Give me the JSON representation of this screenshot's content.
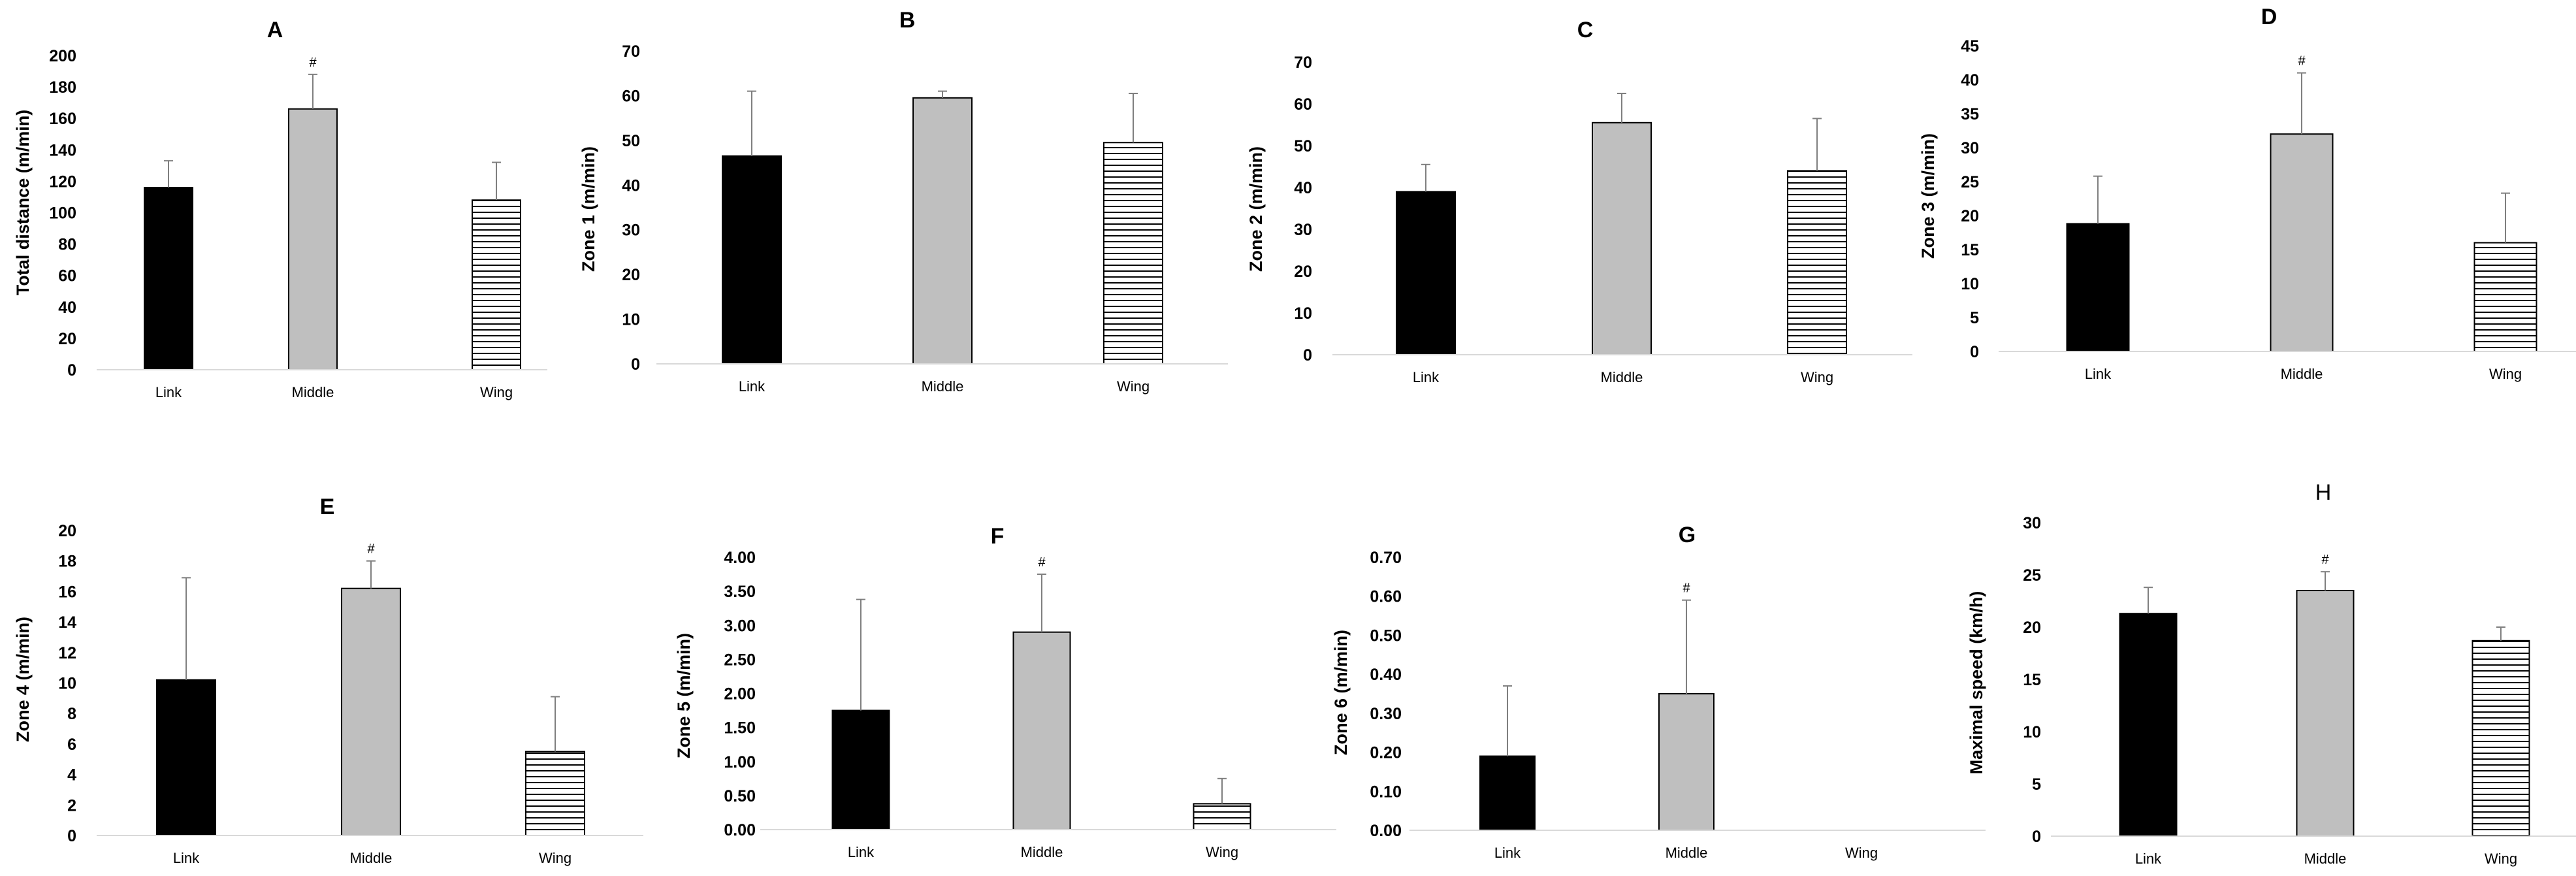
{
  "patterns": {
    "Link": "#000000",
    "Middle": "#bfbfbf",
    "Wing": "horizontal-stripes"
  },
  "chart_data": [
    {
      "panel": "A",
      "type": "bar",
      "ylabel": "Total distance  (m/min)",
      "categories": [
        "Link",
        "Middle",
        "Wing"
      ],
      "values": [
        116,
        166,
        108
      ],
      "errors": [
        17,
        22,
        24
      ],
      "significance": [
        "",
        "#",
        ""
      ],
      "ylim": [
        0,
        200
      ],
      "yticks": [
        "0",
        "20",
        "40",
        "60",
        "80",
        "100",
        "120",
        "140",
        "160",
        "180",
        "200"
      ]
    },
    {
      "panel": "B",
      "type": "bar",
      "ylabel": "Zone 1 (m/min)",
      "categories": [
        "Link",
        "Middle",
        "Wing"
      ],
      "values": [
        46.5,
        59.5,
        49.5
      ],
      "errors": [
        14.5,
        1.5,
        11
      ],
      "significance": [
        "",
        "",
        ""
      ],
      "ylim": [
        0,
        70
      ],
      "yticks": [
        "0",
        "10",
        "20",
        "30",
        "40",
        "50",
        "60",
        "70"
      ]
    },
    {
      "panel": "C",
      "type": "bar",
      "ylabel": "Zone 2 (m/min)",
      "categories": [
        "Link",
        "Middle",
        "Wing"
      ],
      "values": [
        39,
        55.5,
        44
      ],
      "errors": [
        6.5,
        7,
        12.5
      ],
      "significance": [
        "",
        "",
        ""
      ],
      "ylim": [
        0,
        70
      ],
      "yticks": [
        "0",
        "10",
        "20",
        "30",
        "40",
        "50",
        "60",
        "70"
      ]
    },
    {
      "panel": "D",
      "type": "bar",
      "ylabel": "Zone 3 (m/min)",
      "categories": [
        "Link",
        "Middle",
        "Wing"
      ],
      "values": [
        18.8,
        32,
        16
      ],
      "errors": [
        7,
        9,
        7.3
      ],
      "significance": [
        "",
        "#",
        ""
      ],
      "ylim": [
        0,
        45
      ],
      "yticks": [
        "0",
        "5",
        "10",
        "15",
        "20",
        "25",
        "30",
        "35",
        "40",
        "45"
      ]
    },
    {
      "panel": "E",
      "type": "bar",
      "ylabel": "Zone 4 (m/min)",
      "categories": [
        "Link",
        "Middle",
        "Wing"
      ],
      "values": [
        10.2,
        16.2,
        5.5
      ],
      "errors": [
        6.7,
        1.8,
        3.6
      ],
      "significance": [
        "",
        "#",
        ""
      ],
      "ylim": [
        0,
        20
      ],
      "yticks": [
        "0",
        "2",
        "4",
        "6",
        "8",
        "10",
        "12",
        "14",
        "16",
        "18",
        "20"
      ]
    },
    {
      "panel": "F",
      "type": "bar",
      "ylabel": "Zone 5 (m/min)",
      "categories": [
        "Link",
        "Middle",
        "Wing"
      ],
      "values": [
        1.75,
        2.9,
        0.38
      ],
      "errors": [
        1.63,
        0.85,
        0.37
      ],
      "significance": [
        "",
        "#",
        ""
      ],
      "ylim": [
        0,
        4
      ],
      "yticks": [
        "0.00",
        "0.50",
        "1.00",
        "1.50",
        "2.00",
        "2.50",
        "3.00",
        "3.50",
        "4.00"
      ]
    },
    {
      "panel": "G",
      "type": "bar",
      "ylabel": "Zone 6 (m/min)",
      "categories": [
        "Link",
        "Middle",
        "Wing"
      ],
      "values": [
        0.19,
        0.35,
        0
      ],
      "errors": [
        0.18,
        0.24,
        0
      ],
      "significance": [
        "",
        "#",
        ""
      ],
      "ylim": [
        0,
        0.7
      ],
      "yticks": [
        "0.00",
        "0.10",
        "0.20",
        "0.30",
        "0.40",
        "0.50",
        "0.60",
        "0.70"
      ]
    },
    {
      "panel": "H",
      "type": "bar",
      "ylabel": "Maximal speed (km/h)",
      "categories": [
        "Link",
        "Middle",
        "Wing"
      ],
      "values": [
        21.3,
        23.5,
        18.7
      ],
      "errors": [
        2.5,
        1.8,
        1.3
      ],
      "significance": [
        "",
        "#",
        ""
      ],
      "ylim": [
        0,
        30
      ],
      "yticks": [
        "0",
        "5",
        "10",
        "15",
        "20",
        "25",
        "30"
      ]
    }
  ]
}
